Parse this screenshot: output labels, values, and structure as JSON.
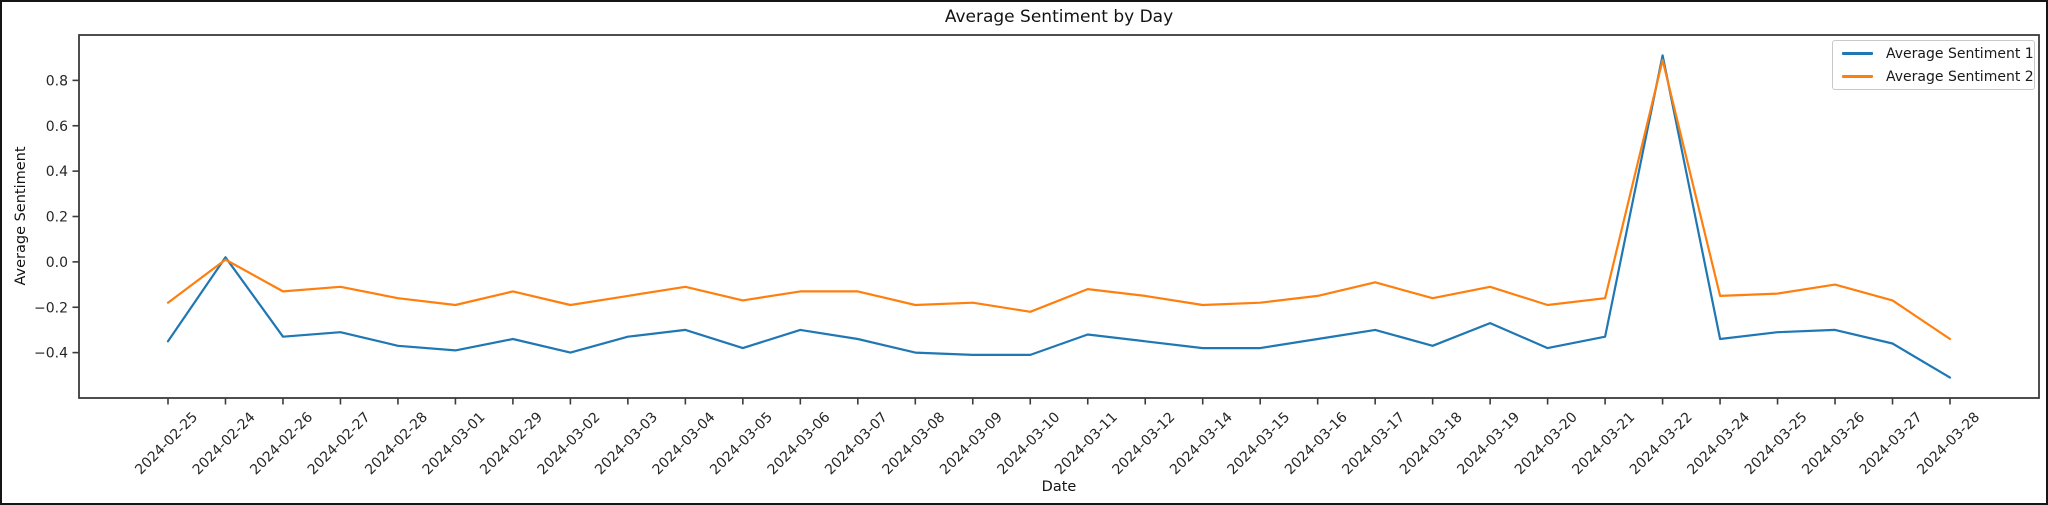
{
  "figure": {
    "title": "Average Sentiment by Day",
    "xlabel": "Date",
    "ylabel": "Average Sentiment"
  },
  "chart_data": {
    "type": "line",
    "title": "Average Sentiment by Day",
    "xlabel": "Date",
    "ylabel": "Average Sentiment",
    "grid": false,
    "legend_position": "upper right",
    "ylim": [
      -0.6,
      1.0
    ],
    "y_tick_labels": [
      "0.8",
      "0.6",
      "0.4",
      "0.2",
      "0.0",
      "−0.2",
      "−0.4"
    ],
    "categories": [
      "2024-02-25",
      "2024-02-24",
      "2024-02-26",
      "2024-02-27",
      "2024-02-28",
      "2024-03-01",
      "2024-02-29",
      "2024-03-02",
      "2024-03-03",
      "2024-03-04",
      "2024-03-05",
      "2024-03-06",
      "2024-03-07",
      "2024-03-08",
      "2024-03-09",
      "2024-03-10",
      "2024-03-11",
      "2024-03-12",
      "2024-03-14",
      "2024-03-15",
      "2024-03-16",
      "2024-03-17",
      "2024-03-18",
      "2024-03-19",
      "2024-03-20",
      "2024-03-21",
      "2024-03-22",
      "2024-03-24",
      "2024-03-25",
      "2024-03-26",
      "2024-03-27",
      "2024-03-28"
    ],
    "series": [
      {
        "name": "Average Sentiment 1",
        "color": "#1f77b4",
        "values": [
          -0.35,
          0.02,
          -0.33,
          -0.31,
          -0.37,
          -0.39,
          -0.34,
          -0.4,
          -0.33,
          -0.3,
          -0.38,
          -0.3,
          -0.34,
          -0.4,
          -0.41,
          -0.41,
          -0.32,
          -0.35,
          -0.38,
          -0.38,
          -0.34,
          -0.3,
          -0.37,
          -0.27,
          -0.38,
          -0.33,
          0.91,
          -0.34,
          -0.31,
          -0.3,
          -0.36,
          -0.51
        ]
      },
      {
        "name": "Average Sentiment 2",
        "color": "#ff7f0e",
        "values": [
          -0.18,
          0.01,
          -0.13,
          -0.11,
          -0.16,
          -0.19,
          -0.13,
          -0.19,
          -0.15,
          -0.11,
          -0.17,
          -0.13,
          -0.13,
          -0.19,
          -0.18,
          -0.22,
          -0.12,
          -0.15,
          -0.19,
          -0.18,
          -0.15,
          -0.09,
          -0.16,
          -0.11,
          -0.19,
          -0.16,
          0.89,
          -0.15,
          -0.14,
          -0.1,
          -0.17,
          -0.34
        ]
      }
    ]
  },
  "colors": {
    "spine": "#3b3b3b",
    "tick_text": "#262626",
    "figure_border": "#151515",
    "legend_border": "#c9c9c9"
  }
}
